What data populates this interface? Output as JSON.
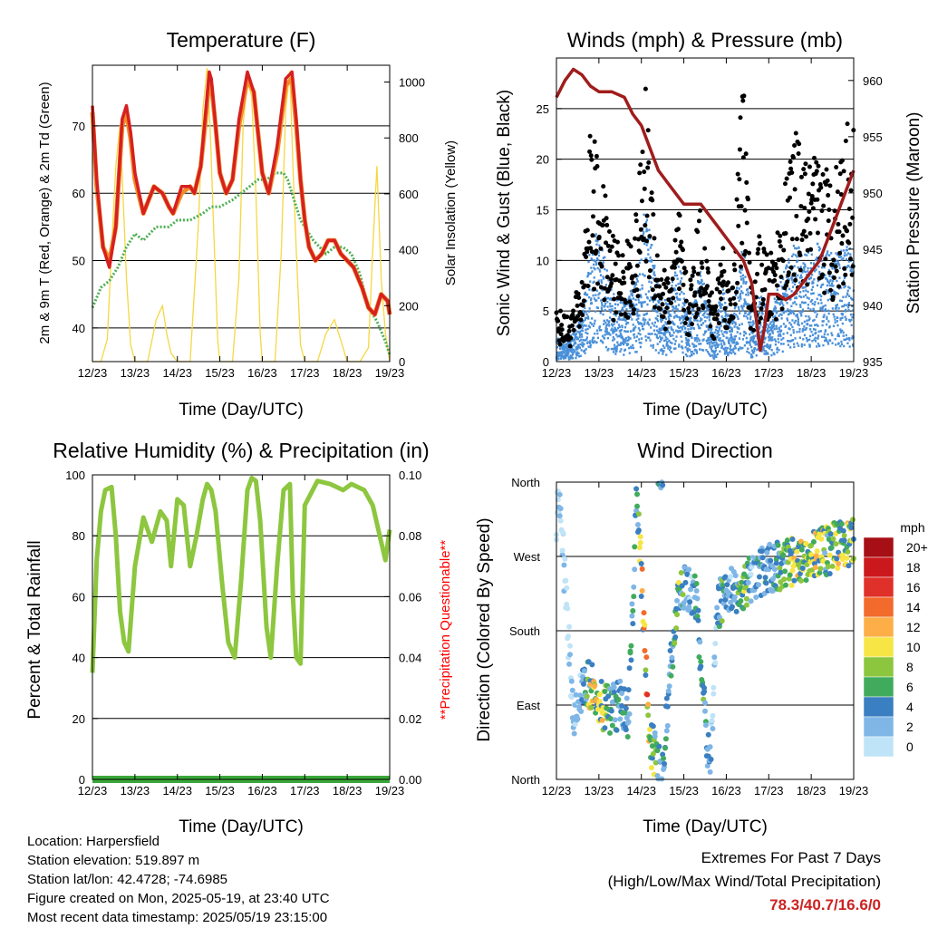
{
  "panels": {
    "temperature": {
      "title": "Temperature (F)",
      "ylabel_left": "2m & 9m T (Red, Orange) & 2m Td (Green)",
      "ylabel_right": "Solar Insolation (Yellow)",
      "xlabel": "Time (Day/UTC)"
    },
    "winds": {
      "title": "Winds (mph) & Pressure (mb)",
      "ylabel_left": "Sonic Wind & Gust (Blue, Black)",
      "ylabel_right": "Station Pressure (Maroon)",
      "xlabel": "Time (Day/UTC)"
    },
    "humidity": {
      "title": "Relative Humidity (%) & Precipitation (in)",
      "ylabel_left": "Percent & Total Rainfall",
      "ylabel_right": "**Precipitation Questionable**",
      "xlabel": "Time (Day/UTC)"
    },
    "direction": {
      "title": "Wind Direction",
      "ylabel_left": "Direction (Colored By Speed)",
      "xlabel": "Time (Day/UTC)",
      "legend_title": "mph",
      "legend_labels": [
        "20+",
        "18",
        "16",
        "14",
        "12",
        "10",
        "8",
        "6",
        "4",
        "2",
        "0"
      ],
      "legend_colors": [
        "#a50f15",
        "#cb181d",
        "#e0302a",
        "#f26a2c",
        "#fdae47",
        "#f6e545",
        "#8cc63f",
        "#41ab5d",
        "#3a7fc1",
        "#7fb6e6",
        "#bfe3f7"
      ]
    }
  },
  "info": {
    "location": "Location: Harpersfield",
    "elevation": "Station elevation: 519.897 m",
    "latlon": "Station lat/lon: 42.4728; -74.6985",
    "created": "Figure created on Mon, 2025-05-19, at 23:40 UTC",
    "recent": "Most recent data timestamp: 2025/05/19 23:15:00"
  },
  "extremes": {
    "line1": "Extremes For Past 7 Days",
    "line2": "(High/Low/Max Wind/Total Precipitation)",
    "values": "78.3/40.7/16.6/0"
  },
  "colors": {
    "temp_2m": "#d62020",
    "temp_9m": "#f28c28",
    "dewpoint": "#4caf50",
    "insolation": "#f5d742",
    "wind": "#4a90d9",
    "gust": "#000000",
    "pressure": "#a01c1c",
    "rh": "#8dc63f",
    "precip": "#3aa83a",
    "questionable": "#ff0000",
    "extremes": "#cc2222"
  },
  "chart_data": [
    {
      "type": "line",
      "title": "Temperature (F)",
      "xlabel": "Time (Day/UTC)",
      "ylabel": "2m & 9m T (Red, Orange) & 2m Td (Green)",
      "y2label": "Solar Insolation (Yellow)",
      "xlim": [
        12,
        19
      ],
      "ylim": [
        35,
        79
      ],
      "y2lim": [
        0,
        1060
      ],
      "xticks": [
        "12/23",
        "13/23",
        "14/23",
        "15/23",
        "16/23",
        "17/23",
        "18/23",
        "19/23"
      ],
      "yticks": [
        40,
        50,
        60,
        70
      ],
      "y2ticks": [
        0,
        200,
        400,
        600,
        800,
        1000
      ],
      "grid": true,
      "series": [
        {
          "name": "2m T",
          "x": [
            12.0,
            12.1,
            12.25,
            12.4,
            12.55,
            12.7,
            12.8,
            12.9,
            13.0,
            13.2,
            13.45,
            13.65,
            13.8,
            13.9,
            14.1,
            14.3,
            14.4,
            14.55,
            14.65,
            14.75,
            14.8,
            14.9,
            15.0,
            15.15,
            15.3,
            15.45,
            15.65,
            15.8,
            15.9,
            16.0,
            16.15,
            16.35,
            16.55,
            16.7,
            16.8,
            16.9,
            17.0,
            17.1,
            17.25,
            17.4,
            17.55,
            17.7,
            17.85,
            18.0,
            18.15,
            18.35,
            18.5,
            18.65,
            18.8,
            18.95,
            19.0
          ],
          "y": [
            73,
            62,
            52,
            49,
            55,
            71,
            73,
            69,
            63,
            57,
            61,
            60,
            58,
            57,
            61,
            61,
            60,
            64,
            71,
            78,
            77,
            70,
            63,
            60,
            62,
            71,
            78,
            75,
            69,
            63,
            60,
            67,
            77,
            78,
            71,
            62,
            56,
            52,
            50,
            51,
            53,
            53,
            51,
            50,
            49,
            46,
            43,
            42,
            45,
            44,
            42
          ]
        },
        {
          "name": "9m T",
          "x": [
            12.0,
            12.1,
            12.25,
            12.4,
            12.55,
            12.7,
            12.8,
            12.9,
            13.0,
            13.2,
            13.45,
            13.65,
            13.8,
            13.9,
            14.1,
            14.3,
            14.4,
            14.55,
            14.65,
            14.75,
            14.8,
            14.9,
            15.0,
            15.15,
            15.3,
            15.45,
            15.65,
            15.8,
            15.9,
            16.0,
            16.15,
            16.35,
            16.55,
            16.7,
            16.8,
            16.9,
            17.0,
            17.1,
            17.25,
            17.4,
            17.55,
            17.7,
            17.85,
            18.0,
            18.15,
            18.35,
            18.5,
            18.65,
            18.8,
            18.95,
            19.0
          ],
          "y": [
            72,
            61,
            52,
            50,
            55,
            70,
            72,
            68,
            62,
            57,
            61,
            60,
            58,
            57,
            60,
            61,
            60,
            64,
            70,
            77,
            76,
            70,
            63,
            60,
            62,
            70,
            77,
            75,
            69,
            63,
            60,
            66,
            76,
            77,
            70,
            62,
            56,
            52,
            50,
            51,
            53,
            53,
            51,
            50,
            49,
            46,
            43,
            42,
            45,
            44,
            42
          ]
        },
        {
          "name": "2m Td",
          "x": [
            12.0,
            12.2,
            12.4,
            12.6,
            12.8,
            13.0,
            13.2,
            13.5,
            13.8,
            14.0,
            14.3,
            14.6,
            14.8,
            15.0,
            15.3,
            15.5,
            15.7,
            15.9,
            16.1,
            16.3,
            16.5,
            16.6,
            16.8,
            16.9,
            17.0,
            17.2,
            17.5,
            17.7,
            17.9,
            18.1,
            18.3,
            18.5,
            18.7,
            18.9,
            19.0
          ],
          "y": [
            43,
            46,
            47,
            49,
            52,
            54,
            53,
            55,
            55,
            56,
            56,
            57,
            58,
            58,
            59,
            60,
            61,
            62,
            62,
            63,
            63,
            62,
            58,
            56,
            55,
            53,
            51,
            52,
            52,
            51,
            48,
            43,
            41,
            38,
            36
          ]
        },
        {
          "name": "Solar Insolation",
          "axis": "right",
          "x": [
            12.0,
            12.2,
            12.35,
            12.45,
            12.55,
            12.65,
            12.72,
            12.8,
            12.9,
            13.0,
            13.3,
            13.5,
            13.65,
            13.75,
            13.85,
            14.0,
            14.3,
            14.5,
            14.6,
            14.7,
            14.78,
            14.85,
            14.95,
            15.0,
            15.3,
            15.45,
            15.55,
            15.65,
            15.75,
            15.85,
            15.95,
            16.0,
            16.3,
            16.45,
            16.55,
            16.65,
            16.72,
            16.8,
            16.9,
            17.0,
            17.3,
            17.5,
            17.7,
            17.9,
            18.0,
            18.3,
            18.5,
            18.6,
            18.7,
            18.8,
            18.9,
            19.0
          ],
          "y": [
            0,
            0,
            80,
            400,
            700,
            850,
            600,
            300,
            60,
            0,
            0,
            150,
            200,
            100,
            30,
            0,
            0,
            500,
            900,
            1050,
            800,
            500,
            80,
            0,
            0,
            300,
            850,
            1000,
            950,
            600,
            100,
            0,
            0,
            400,
            900,
            1040,
            700,
            400,
            60,
            0,
            0,
            100,
            150,
            50,
            0,
            0,
            50,
            400,
            700,
            300,
            100,
            0
          ]
        }
      ]
    },
    {
      "type": "scatter",
      "title": "Winds (mph) & Pressure (mb)",
      "xlabel": "Time (Day/UTC)",
      "ylabel": "Sonic Wind & Gust (Blue, Black)",
      "y2label": "Station Pressure (Maroon)",
      "xlim": [
        12,
        19
      ],
      "ylim": [
        0,
        30
      ],
      "y2lim": [
        935,
        962
      ],
      "xticks": [
        "12/23",
        "13/23",
        "14/23",
        "15/23",
        "16/23",
        "17/23",
        "18/23",
        "19/23"
      ],
      "yticks": [
        0,
        5,
        10,
        15,
        20,
        25
      ],
      "y2ticks": [
        935,
        940,
        945,
        950,
        955,
        960
      ],
      "grid": true,
      "series": [
        {
          "name": "Sonic Wind",
          "x": [
            12.0,
            12.3,
            12.6,
            12.8,
            13.0,
            13.3,
            13.6,
            13.9,
            14.1,
            14.4,
            14.6,
            14.9,
            15.1,
            15.4,
            15.7,
            15.9,
            16.1,
            16.4,
            16.6,
            16.8,
            17.0,
            17.3,
            17.6,
            17.9,
            18.2,
            18.5,
            18.8,
            19.0
          ],
          "y": [
            2,
            2,
            4,
            10,
            11,
            6,
            5,
            7,
            14,
            6,
            5,
            9,
            3,
            8,
            2,
            7,
            3,
            10,
            3,
            6,
            4,
            7,
            10,
            9,
            10,
            9,
            10,
            9
          ]
        },
        {
          "name": "Gust",
          "x": [
            12.0,
            12.3,
            12.6,
            12.8,
            13.0,
            13.3,
            13.6,
            13.9,
            14.1,
            14.4,
            14.6,
            14.9,
            15.1,
            15.4,
            15.7,
            15.9,
            16.1,
            16.4,
            16.6,
            16.8,
            17.0,
            17.3,
            17.6,
            17.9,
            18.2,
            18.5,
            18.8,
            19.0
          ],
          "y": [
            5,
            4,
            8,
            22,
            18,
            12,
            10,
            14,
            25,
            10,
            8,
            14,
            6,
            15,
            5,
            12,
            6,
            27,
            6,
            12,
            9,
            14,
            21,
            18,
            19,
            17,
            22,
            22
          ]
        },
        {
          "name": "Station Pressure",
          "axis": "right",
          "x": [
            12.0,
            12.2,
            12.4,
            12.6,
            12.8,
            13.0,
            13.3,
            13.6,
            13.8,
            14.0,
            14.2,
            14.4,
            14.6,
            14.8,
            15.0,
            15.2,
            15.4,
            15.6,
            15.8,
            16.0,
            16.2,
            16.4,
            16.6,
            16.7,
            16.8,
            16.9,
            17.0,
            17.2,
            17.4,
            17.6,
            17.8,
            18.0,
            18.2,
            18.4,
            18.6,
            18.8,
            19.0
          ],
          "y": [
            958.5,
            960,
            961,
            960.5,
            959.5,
            959,
            959,
            958.5,
            957,
            956,
            954,
            952,
            951,
            950,
            949,
            949,
            949,
            948,
            947,
            946,
            945,
            944,
            942,
            939,
            936,
            938,
            941,
            941,
            940.5,
            941,
            942,
            943,
            944,
            946,
            948,
            950,
            952
          ]
        }
      ]
    },
    {
      "type": "line",
      "title": "Relative Humidity (%) & Precipitation (in)",
      "xlabel": "Time (Day/UTC)",
      "ylabel": "Percent & Total Rainfall",
      "y2label": "**Precipitation Questionable**",
      "xlim": [
        12,
        19
      ],
      "ylim": [
        0,
        100
      ],
      "y2lim": [
        0,
        0.1
      ],
      "xticks": [
        "12/23",
        "13/23",
        "14/23",
        "15/23",
        "16/23",
        "17/23",
        "18/23",
        "19/23"
      ],
      "yticks": [
        0,
        20,
        40,
        60,
        80,
        100
      ],
      "y2ticks": [
        "0.00",
        "0.02",
        "0.04",
        "0.06",
        "0.08",
        "0.10"
      ],
      "grid": true,
      "series": [
        {
          "name": "Relative Humidity",
          "x": [
            12.0,
            12.1,
            12.2,
            12.3,
            12.45,
            12.55,
            12.65,
            12.75,
            12.85,
            13.0,
            13.2,
            13.4,
            13.6,
            13.75,
            13.85,
            14.0,
            14.15,
            14.3,
            14.45,
            14.6,
            14.7,
            14.8,
            14.9,
            15.05,
            15.2,
            15.35,
            15.5,
            15.65,
            15.75,
            15.85,
            15.95,
            16.1,
            16.2,
            16.35,
            16.5,
            16.65,
            16.72,
            16.8,
            16.9,
            17.0,
            17.3,
            17.6,
            17.9,
            18.1,
            18.4,
            18.6,
            18.8,
            18.9,
            19.0
          ],
          "y": [
            35,
            72,
            88,
            95,
            96,
            80,
            55,
            45,
            42,
            70,
            86,
            78,
            88,
            85,
            70,
            92,
            90,
            70,
            80,
            92,
            97,
            95,
            88,
            65,
            45,
            40,
            65,
            95,
            99,
            98,
            85,
            50,
            40,
            70,
            95,
            97,
            60,
            40,
            38,
            90,
            98,
            97,
            95,
            97,
            95,
            90,
            78,
            72,
            82
          ]
        },
        {
          "name": "Total Precipitation",
          "axis": "right",
          "x": [
            12.0,
            19.0
          ],
          "y": [
            0,
            0
          ]
        }
      ]
    },
    {
      "type": "scatter",
      "title": "Wind Direction",
      "xlabel": "Time (Day/UTC)",
      "ylabel": "Direction (Colored By Speed)",
      "xlim": [
        12,
        19
      ],
      "xticks": [
        "12/23",
        "13/23",
        "14/23",
        "15/23",
        "16/23",
        "17/23",
        "18/23",
        "19/23"
      ],
      "yticks": [
        "North",
        "East",
        "South",
        "West",
        "North"
      ],
      "color_scale": {
        "label": "mph",
        "levels": [
          "0",
          "2",
          "4",
          "6",
          "8",
          "10",
          "12",
          "14",
          "16",
          "18",
          "20+"
        ]
      },
      "grid": true,
      "series": [
        {
          "name": "Wind Direction (deg)",
          "x": [
            12.1,
            12.4,
            12.7,
            12.9,
            13.1,
            13.3,
            13.5,
            13.7,
            13.9,
            14.2,
            14.5,
            14.8,
            15.0,
            15.3,
            15.6,
            15.8,
            16.0,
            16.3,
            16.6,
            16.8,
            17.0,
            17.3,
            17.6,
            17.9,
            18.2,
            18.5,
            18.8
          ],
          "y": [
            320,
            80,
            120,
            110,
            90,
            85,
            90,
            80,
            350,
            40,
            20,
            200,
            230,
            220,
            10,
            210,
            230,
            230,
            240,
            250,
            255,
            260,
            265,
            270,
            275,
            280,
            285
          ]
        }
      ]
    }
  ]
}
